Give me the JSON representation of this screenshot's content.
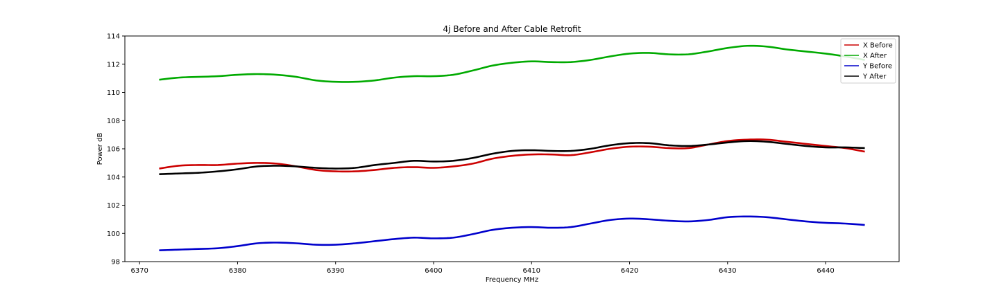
{
  "chart_data": {
    "type": "line",
    "title": "4j Before and After Cable Retrofit",
    "xlabel": "Frequency MHz",
    "ylabel": "Power dB",
    "xlim": [
      6368.5,
      6447.5
    ],
    "ylim": [
      98,
      114
    ],
    "xticks": [
      6370,
      6380,
      6390,
      6400,
      6410,
      6420,
      6430,
      6440
    ],
    "yticks": [
      98,
      100,
      102,
      104,
      106,
      108,
      110,
      112,
      114
    ],
    "grid": false,
    "legend_position": "top-right",
    "x": [
      6372,
      6374,
      6376,
      6378,
      6380,
      6382,
      6384,
      6386,
      6388,
      6390,
      6392,
      6394,
      6396,
      6398,
      6400,
      6402,
      6404,
      6406,
      6408,
      6410,
      6412,
      6414,
      6416,
      6418,
      6420,
      6422,
      6424,
      6426,
      6428,
      6430,
      6432,
      6434,
      6436,
      6438,
      6440,
      6442,
      6444
    ],
    "series": [
      {
        "name": "X Before",
        "color": "#cc0000",
        "values": [
          104.6,
          104.8,
          104.85,
          104.85,
          104.95,
          105.0,
          104.95,
          104.75,
          104.5,
          104.4,
          104.4,
          104.5,
          104.65,
          104.7,
          104.65,
          104.75,
          104.95,
          105.3,
          105.5,
          105.6,
          105.6,
          105.55,
          105.75,
          106.0,
          106.15,
          106.15,
          106.05,
          106.05,
          106.3,
          106.55,
          106.65,
          106.65,
          106.5,
          106.35,
          106.2,
          106.05,
          105.8
        ]
      },
      {
        "name": "X After",
        "color": "#00aa00",
        "values": [
          110.9,
          111.05,
          111.1,
          111.15,
          111.25,
          111.3,
          111.25,
          111.1,
          110.85,
          110.75,
          110.75,
          110.85,
          111.05,
          111.15,
          111.15,
          111.25,
          111.55,
          111.9,
          112.1,
          112.2,
          112.15,
          112.15,
          112.3,
          112.55,
          112.75,
          112.8,
          112.7,
          112.7,
          112.9,
          113.15,
          113.3,
          113.25,
          113.05,
          112.9,
          112.75,
          112.55,
          112.3
        ]
      },
      {
        "name": "Y Before",
        "color": "#0000cc",
        "values": [
          98.8,
          98.85,
          98.9,
          98.95,
          99.1,
          99.3,
          99.35,
          99.3,
          99.2,
          99.2,
          99.3,
          99.45,
          99.6,
          99.7,
          99.65,
          99.7,
          99.95,
          100.25,
          100.4,
          100.45,
          100.4,
          100.45,
          100.7,
          100.95,
          101.05,
          101.0,
          100.9,
          100.85,
          100.95,
          101.15,
          101.2,
          101.15,
          101.0,
          100.85,
          100.75,
          100.7,
          100.6
        ]
      },
      {
        "name": "Y After",
        "color": "#000000",
        "values": [
          104.2,
          104.25,
          104.3,
          104.4,
          104.55,
          104.75,
          104.8,
          104.75,
          104.65,
          104.6,
          104.65,
          104.85,
          105.0,
          105.15,
          105.1,
          105.15,
          105.35,
          105.65,
          105.85,
          105.9,
          105.85,
          105.85,
          106.0,
          106.25,
          106.4,
          106.4,
          106.25,
          106.2,
          106.3,
          106.45,
          106.55,
          106.5,
          106.35,
          106.2,
          106.1,
          106.1,
          106.05
        ]
      }
    ]
  }
}
